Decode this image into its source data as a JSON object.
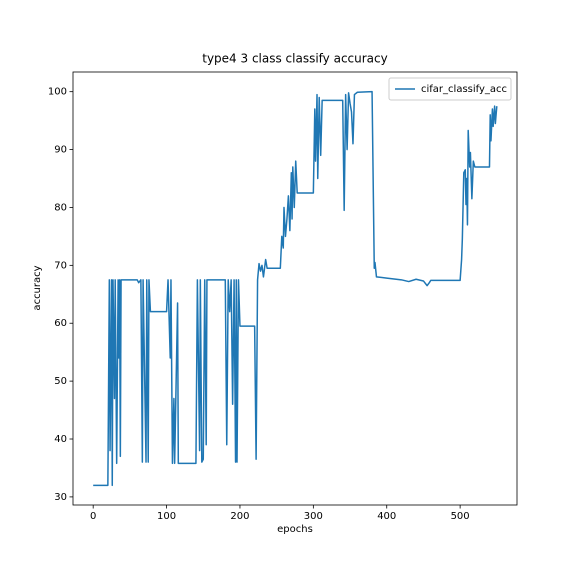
{
  "chart_data": {
    "type": "line",
    "title": "type4 3 class classify accuracy",
    "xlabel": "epochs",
    "ylabel": "accuracy",
    "x": [
      0,
      20,
      22,
      23,
      25,
      26,
      27,
      29,
      30,
      32,
      34,
      35,
      36,
      37,
      38,
      45,
      60,
      62,
      65,
      67,
      68,
      72,
      73,
      75,
      76,
      78,
      100,
      102,
      105,
      106,
      108,
      110,
      111,
      115,
      116,
      140,
      142,
      145,
      146,
      148,
      150,
      152,
      154,
      155,
      180,
      182,
      184,
      186,
      188,
      190,
      192,
      194,
      195,
      196,
      198,
      200,
      220,
      222,
      224,
      226,
      228,
      230,
      232,
      235,
      237,
      240,
      255,
      257,
      259,
      260,
      262,
      264,
      266,
      268,
      270,
      271,
      272,
      274,
      276,
      278,
      300,
      302,
      303,
      305,
      306,
      308,
      310,
      312,
      340,
      342,
      344,
      346,
      348,
      350,
      352,
      354,
      356,
      360,
      380,
      383,
      384,
      386,
      400,
      420,
      430,
      440,
      450,
      455,
      458,
      460,
      500,
      502,
      503,
      505,
      507,
      508,
      509,
      510,
      511,
      513,
      514,
      516,
      518,
      520,
      540,
      541,
      542,
      544,
      545,
      547,
      548,
      550
    ],
    "series": [
      {
        "name": "cifar_classify_acc",
        "color": "#1f77b4",
        "values": [
          32,
          32,
          67.5,
          38,
          67.5,
          32,
          67.5,
          47,
          67.5,
          35.8,
          67.5,
          54,
          67.5,
          37,
          67.5,
          67.5,
          67.5,
          67,
          67.5,
          36,
          67.5,
          36,
          67.5,
          36,
          67.5,
          62,
          62,
          67.5,
          54,
          67.5,
          35.8,
          47,
          35.8,
          63.5,
          35.8,
          35.8,
          67.5,
          38,
          67.5,
          36,
          36.5,
          67.5,
          39,
          67.5,
          67.5,
          39,
          67.5,
          62,
          67.5,
          46,
          67.5,
          36,
          67.5,
          36,
          67.5,
          59.5,
          59.5,
          36.5,
          67.5,
          70.3,
          69,
          70,
          68,
          71,
          69.5,
          69.5,
          69.5,
          75,
          73,
          80,
          75,
          78,
          82,
          76,
          86,
          78,
          87,
          80,
          88,
          82.5,
          82.5,
          97,
          88,
          99.5,
          85,
          99,
          89,
          98.5,
          98.5,
          79.5,
          99.5,
          90,
          99.8,
          98,
          96.5,
          91,
          99.5,
          99.9,
          100,
          69.5,
          70.5,
          68,
          67.8,
          67.5,
          67.2,
          67.6,
          67.3,
          66.5,
          67,
          67.4,
          67.4,
          71,
          74.5,
          86,
          86.5,
          80.5,
          85,
          77,
          93.3,
          87,
          89.5,
          81.5,
          88,
          87,
          87,
          96,
          91.5,
          97,
          94,
          97.5,
          94.5,
          97.5
        ]
      }
    ],
    "xlim": [
      -27.5,
      577.5
    ],
    "ylim": [
      28.6,
      103.4
    ],
    "xticks": [
      0,
      100,
      200,
      300,
      400,
      500
    ],
    "yticks": [
      30,
      40,
      50,
      60,
      70,
      80,
      90,
      100
    ],
    "legend": "upper right"
  }
}
